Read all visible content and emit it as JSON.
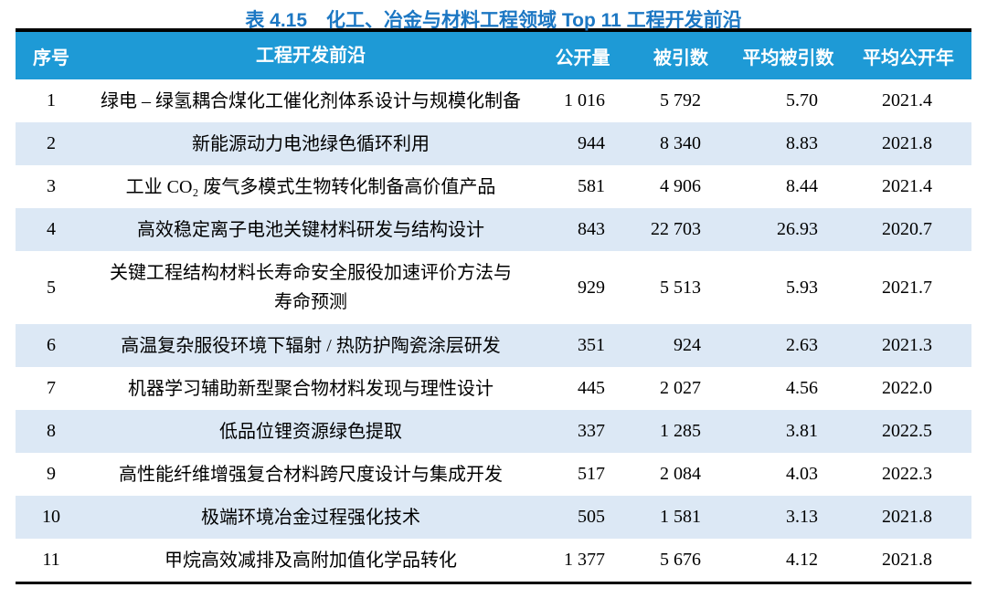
{
  "title": "表 4.15　化工、冶金与材料工程领域 Top 11 工程开发前沿",
  "colors": {
    "header_bg": "#1E9AD6",
    "row_alt_bg": "#DCE8F5",
    "title_color": "#1C77C3",
    "border_color": "#000000"
  },
  "table": {
    "columns": [
      {
        "key": "no",
        "label": "序号"
      },
      {
        "key": "front",
        "label": "工程开发前沿"
      },
      {
        "key": "publications",
        "label": "公开量"
      },
      {
        "key": "citations",
        "label": "被引数"
      },
      {
        "key": "avg_citations",
        "label": "平均被引数"
      },
      {
        "key": "avg_year",
        "label": "平均公开年"
      }
    ],
    "rows": [
      {
        "no": "1",
        "front": "绿电 – 绿氢耦合煤化工催化剂体系设计与规模化制备",
        "publications": "1 016",
        "citations": "5 792",
        "avg_citations": "5.70",
        "avg_year": "2021.4"
      },
      {
        "no": "2",
        "front": "新能源动力电池绿色循环利用",
        "publications": "944",
        "citations": "8 340",
        "avg_citations": "8.83",
        "avg_year": "2021.8"
      },
      {
        "no": "3",
        "front": "工业 CO₂ 废气多模式生物转化制备高价值产品",
        "publications": "581",
        "citations": "4 906",
        "avg_citations": "8.44",
        "avg_year": "2021.4"
      },
      {
        "no": "4",
        "front": "高效稳定离子电池关键材料研发与结构设计",
        "publications": "843",
        "citations": "22 703",
        "avg_citations": "26.93",
        "avg_year": "2020.7"
      },
      {
        "no": "5",
        "front": "关键工程结构材料长寿命安全服役加速评价方法与\n寿命预测",
        "publications": "929",
        "citations": "5 513",
        "avg_citations": "5.93",
        "avg_year": "2021.7"
      },
      {
        "no": "6",
        "front": "高温复杂服役环境下辐射 / 热防护陶瓷涂层研发",
        "publications": "351",
        "citations": "924",
        "avg_citations": "2.63",
        "avg_year": "2021.3"
      },
      {
        "no": "7",
        "front": "机器学习辅助新型聚合物材料发现与理性设计",
        "publications": "445",
        "citations": "2 027",
        "avg_citations": "4.56",
        "avg_year": "2022.0"
      },
      {
        "no": "8",
        "front": "低品位锂资源绿色提取",
        "publications": "337",
        "citations": "1 285",
        "avg_citations": "3.81",
        "avg_year": "2022.5"
      },
      {
        "no": "9",
        "front": "高性能纤维增强复合材料跨尺度设计与集成开发",
        "publications": "517",
        "citations": "2 084",
        "avg_citations": "4.03",
        "avg_year": "2022.3"
      },
      {
        "no": "10",
        "front": "极端环境冶金过程强化技术",
        "publications": "505",
        "citations": "1 581",
        "avg_citations": "3.13",
        "avg_year": "2021.8"
      },
      {
        "no": "11",
        "front": "甲烷高效减排及高附加值化学品转化",
        "publications": "1 377",
        "citations": "5 676",
        "avg_citations": "4.12",
        "avg_year": "2021.8"
      }
    ]
  }
}
